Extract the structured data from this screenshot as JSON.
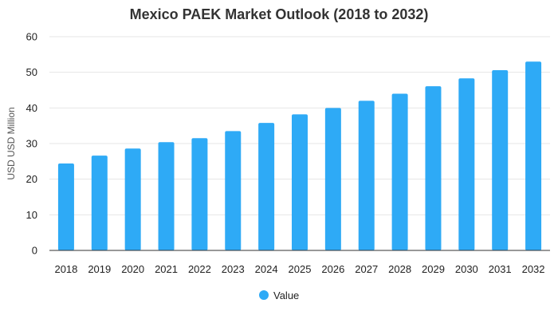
{
  "chart_data": {
    "type": "bar",
    "title": "Mexico PAEK Market Outlook (2018 to 2032)",
    "xlabel": "",
    "ylabel": "USD USD Million",
    "ylim": [
      0,
      60
    ],
    "yticks": [
      0,
      10,
      20,
      30,
      40,
      50,
      60
    ],
    "grid": true,
    "legend_position": "bottom",
    "categories": [
      "2018",
      "2019",
      "2020",
      "2021",
      "2022",
      "2023",
      "2024",
      "2025",
      "2026",
      "2027",
      "2028",
      "2029",
      "2030",
      "2031",
      "2032"
    ],
    "series": [
      {
        "name": "Value",
        "color": "#2eaaf6",
        "values": [
          24.4,
          26.6,
          28.6,
          30.4,
          31.5,
          33.5,
          35.8,
          38.2,
          40.0,
          42.0,
          44.0,
          46.1,
          48.3,
          50.6,
          53.0
        ]
      }
    ]
  }
}
